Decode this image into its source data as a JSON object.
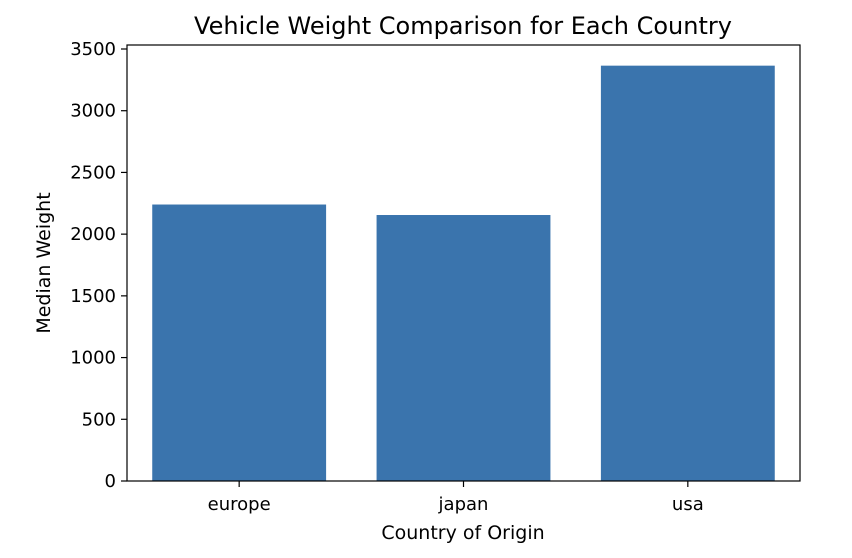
{
  "chart_data": {
    "type": "bar",
    "title": "Vehicle Weight Comparison for Each Country",
    "xlabel": "Country of Origin",
    "ylabel": "Median Weight",
    "categories": [
      "europe",
      "japan",
      "usa"
    ],
    "values": [
      2240,
      2155,
      3365
    ],
    "ylim": [
      0,
      3500
    ],
    "yticks": [
      0,
      500,
      1000,
      1500,
      2000,
      2500,
      3000,
      3500
    ],
    "bar_color": "#3a74ad",
    "grid": false,
    "legend": "none"
  }
}
